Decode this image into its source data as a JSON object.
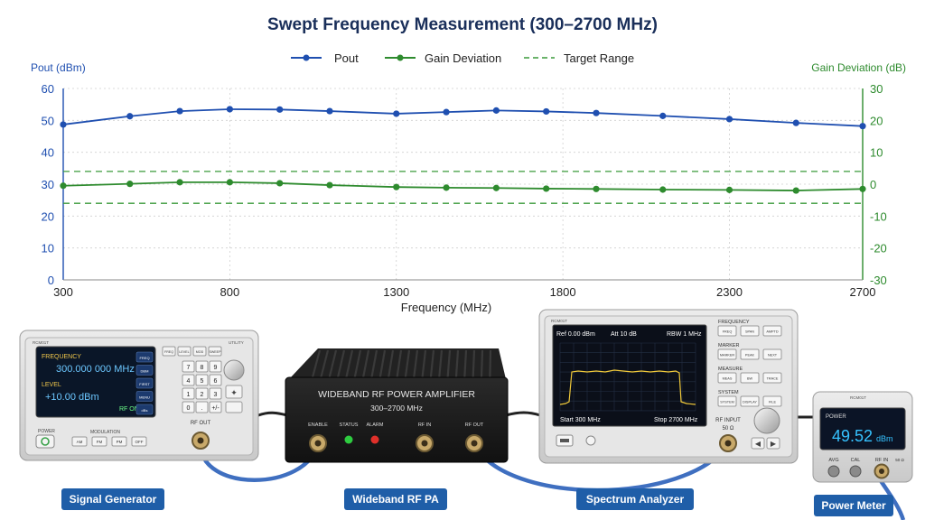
{
  "chart_data": {
    "type": "line",
    "title": "Swept Frequency Measurement (300–2700 MHz)",
    "xlabel": "Frequency (MHz)",
    "ylabel_left": "Pout (dBm)",
    "ylabel_right": "Gain Deviation (dB)",
    "xlim": [
      300,
      2700
    ],
    "ylim_left": [
      0,
      60
    ],
    "ylim_right": [
      -30,
      30
    ],
    "x_ticks": [
      "300",
      "800",
      "1300",
      "1800",
      "2300",
      "2700"
    ],
    "y_ticks_left": [
      "0",
      "10",
      "20",
      "30",
      "40",
      "50",
      "60"
    ],
    "y_ticks_right": [
      "-30",
      "-20",
      "-10",
      "0",
      "10",
      "20",
      "30"
    ],
    "legend_position": "top-center",
    "grid": true,
    "series": [
      {
        "name": "Pout",
        "axis": "left",
        "color": "#1f4fb0",
        "x": [
          300,
          500,
          650,
          800,
          950,
          1100,
          1300,
          1450,
          1600,
          1750,
          1900,
          2100,
          2300,
          2500,
          2700
        ],
        "values": [
          48.7,
          51.3,
          52.9,
          53.5,
          53.4,
          52.9,
          52.1,
          52.6,
          53.1,
          52.8,
          52.3,
          51.4,
          50.4,
          49.2,
          48.2
        ]
      },
      {
        "name": "Gain Deviation",
        "axis": "right",
        "color": "#2e8b2e",
        "x": [
          300,
          500,
          650,
          800,
          950,
          1100,
          1300,
          1450,
          1600,
          1750,
          1900,
          2100,
          2300,
          2500,
          2700
        ],
        "values": [
          -0.5,
          0.1,
          0.6,
          0.6,
          0.3,
          -0.3,
          -0.9,
          -1.1,
          -1.2,
          -1.4,
          -1.5,
          -1.7,
          -1.8,
          -2.0,
          -1.5
        ]
      }
    ],
    "reference_lines": {
      "name": "Target Range",
      "axis": "right",
      "color": "#3a9a3a",
      "values": [
        4,
        -6
      ]
    }
  },
  "devices": {
    "signal_generator": {
      "model": "RCM01T",
      "frequency_label": "FREQUENCY",
      "frequency_value": "300.000 000 MHz",
      "level_label": "LEVEL",
      "level_value": "+10.00 dBm",
      "rf_on": "RF ON",
      "power_label": "POWER",
      "modulation_label": "MODULATION",
      "mod_buttons": [
        "AM",
        "FM",
        "PM",
        "OFF"
      ],
      "soft_keys": [
        "FREQ",
        "LEVEL",
        "MOD",
        "SWEEP"
      ],
      "side_keys": [
        "FREQ",
        "DBM",
        "FIRST",
        "MENU",
        "dBs"
      ],
      "keypad": [
        "7",
        "8",
        "9",
        "4",
        "5",
        "6",
        "1",
        "2",
        "3",
        "0",
        ".",
        "+/-"
      ],
      "utility_label": "UTILITY",
      "rf_out": "RF OUT",
      "caption": "Signal Generator"
    },
    "amplifier": {
      "title": "WIDEBAND RF POWER AMPLIFIER",
      "range": "300–2700 MHz",
      "enable": "ENABLE",
      "status": "STATUS",
      "alarm": "ALARM",
      "rf_in": "RF IN",
      "rf_out": "RF OUT",
      "caption": "Wideband RF PA"
    },
    "spectrum_analyzer": {
      "model": "RCM01T",
      "ref": "Ref 0.00 dBm",
      "att": "Att 10 dB",
      "rbw": "RBW 1 MHz",
      "start": "Start 300 MHz",
      "stop": "Stop 2700 MHz",
      "groups": [
        "FREQUENCY",
        "MARKER",
        "MEASURE",
        "SYSTEM"
      ],
      "frequency_keys": [
        "FREQ",
        "SPAN",
        "AMPTD"
      ],
      "marker_keys": [
        "MARKER",
        "PEAK",
        "NEXT"
      ],
      "measure_keys": [
        "MEAS",
        "BW",
        "TRACE"
      ],
      "system_keys": [
        "SYSTEM",
        "DISPLAY",
        "FILE"
      ],
      "rf_input": "RF INPUT",
      "impedance": "50 Ω",
      "caption": "Spectrum Analyzer"
    },
    "power_meter": {
      "model": "RCM01T",
      "power_label": "POWER",
      "reading": "49.52",
      "unit": "dBm",
      "avg": "AVG",
      "cal": "CAL",
      "rf_in": "RF IN",
      "impedance": "50 Ω",
      "caption": "Power Meter"
    }
  },
  "colors": {
    "title": "#1a2f5a",
    "left_axis": "#1f4fb0",
    "right_axis": "#2e8b2e",
    "caption_bg": "#1f5ea8",
    "amp_body": "#1b1b1b",
    "instrument_body": "#dcdcdc"
  }
}
